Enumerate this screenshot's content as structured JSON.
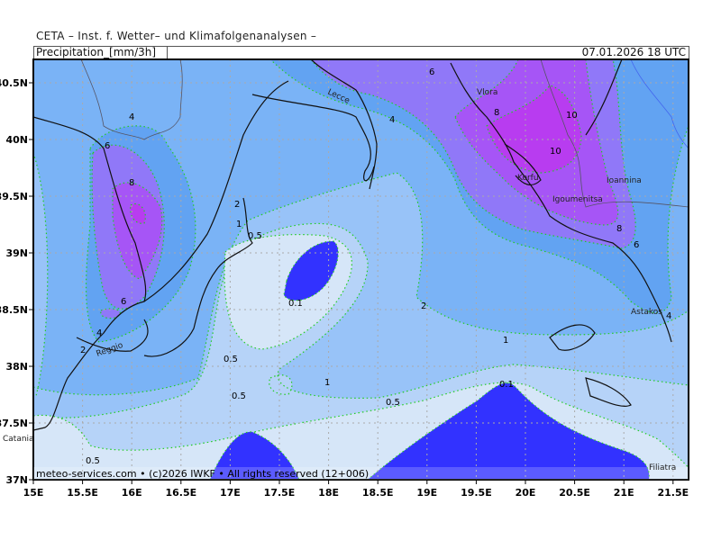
{
  "header": {
    "institute": "CETA – Inst. f. Wetter– und Klimafolgenanalysen –",
    "variable": "Precipitation_[mm/3h]",
    "valid_time": "07.01.2026 18 UTC"
  },
  "footer": {
    "credit": "meteo-services.com • (c)2026 IWKF • All rights reserved (12+006)"
  },
  "axes": {
    "lon_labels": [
      "15E",
      "15.5E",
      "16E",
      "16.5E",
      "17E",
      "17.5E",
      "18E",
      "18.5E",
      "19E",
      "19.5E",
      "20E",
      "20.5E",
      "21E",
      "21.5E"
    ],
    "lat_labels": [
      "40.5N",
      "40N",
      "39.5N",
      "39N",
      "38.5N",
      "38N",
      "37.5N",
      "37N"
    ]
  },
  "legend_colors": {
    "0": "#3232ff",
    "0.1-0.5": "#d6e6f8",
    "0.5-1": "#b6d3f8",
    "1-2": "#98c3f8",
    "2-4": "#7ab3f6",
    "4-6": "#62a3f2",
    "6-8": "#9078f8",
    "8-10": "#a655f6",
    "10+": "#b83cf0"
  },
  "contour_labels": [
    "4",
    "6",
    "8",
    "6",
    "4",
    "2",
    "2",
    "1",
    "0.5",
    "0.1",
    "0.5",
    "0.5",
    "0.5",
    "0.5",
    "1",
    "1",
    "2",
    "0.1",
    "6",
    "4",
    "8",
    "10",
    "10",
    "8",
    "6",
    "4"
  ],
  "cities": [
    "Lecce",
    "Vlora",
    "Korfu",
    "Igoumenitsa",
    "Ioannina",
    "Astakos",
    "Reggio",
    "Catania",
    "Filiatra"
  ]
}
